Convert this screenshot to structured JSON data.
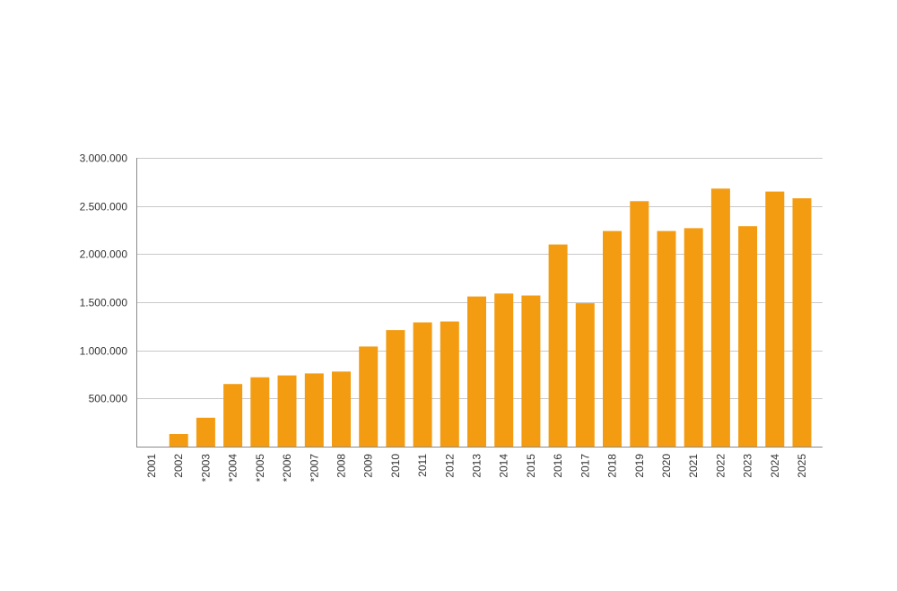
{
  "chart_data": {
    "type": "bar",
    "title": "",
    "xlabel": "",
    "ylabel": "",
    "ylim": [
      0,
      3000000
    ],
    "grid": true,
    "legend": "none",
    "bar_color": "#f39c12",
    "y_ticks": [
      {
        "value": 500000,
        "label": "500.000"
      },
      {
        "value": 1000000,
        "label": "1.000.000"
      },
      {
        "value": 1500000,
        "label": "1.500.000"
      },
      {
        "value": 2000000,
        "label": "2.000.000"
      },
      {
        "value": 2500000,
        "label": "2.500.000"
      },
      {
        "value": 3000000,
        "label": "3.000.000"
      }
    ],
    "categories": [
      "2001",
      "2002",
      "*2003",
      "*2004",
      "*2005",
      "*2006",
      "*2007",
      "2008",
      "2009",
      "2010",
      "2011",
      "2012",
      "2013",
      "2014",
      "2015",
      "2016",
      "2017",
      "2018",
      "2019",
      "2020",
      "2021",
      "2022",
      "2023",
      "2024",
      "2025"
    ],
    "values": [
      0,
      130000,
      300000,
      650000,
      720000,
      740000,
      760000,
      780000,
      1040000,
      1210000,
      1290000,
      1300000,
      1560000,
      1590000,
      1570000,
      2100000,
      1490000,
      2240000,
      2550000,
      2240000,
      2270000,
      2680000,
      2290000,
      2650000,
      2580000
    ]
  }
}
